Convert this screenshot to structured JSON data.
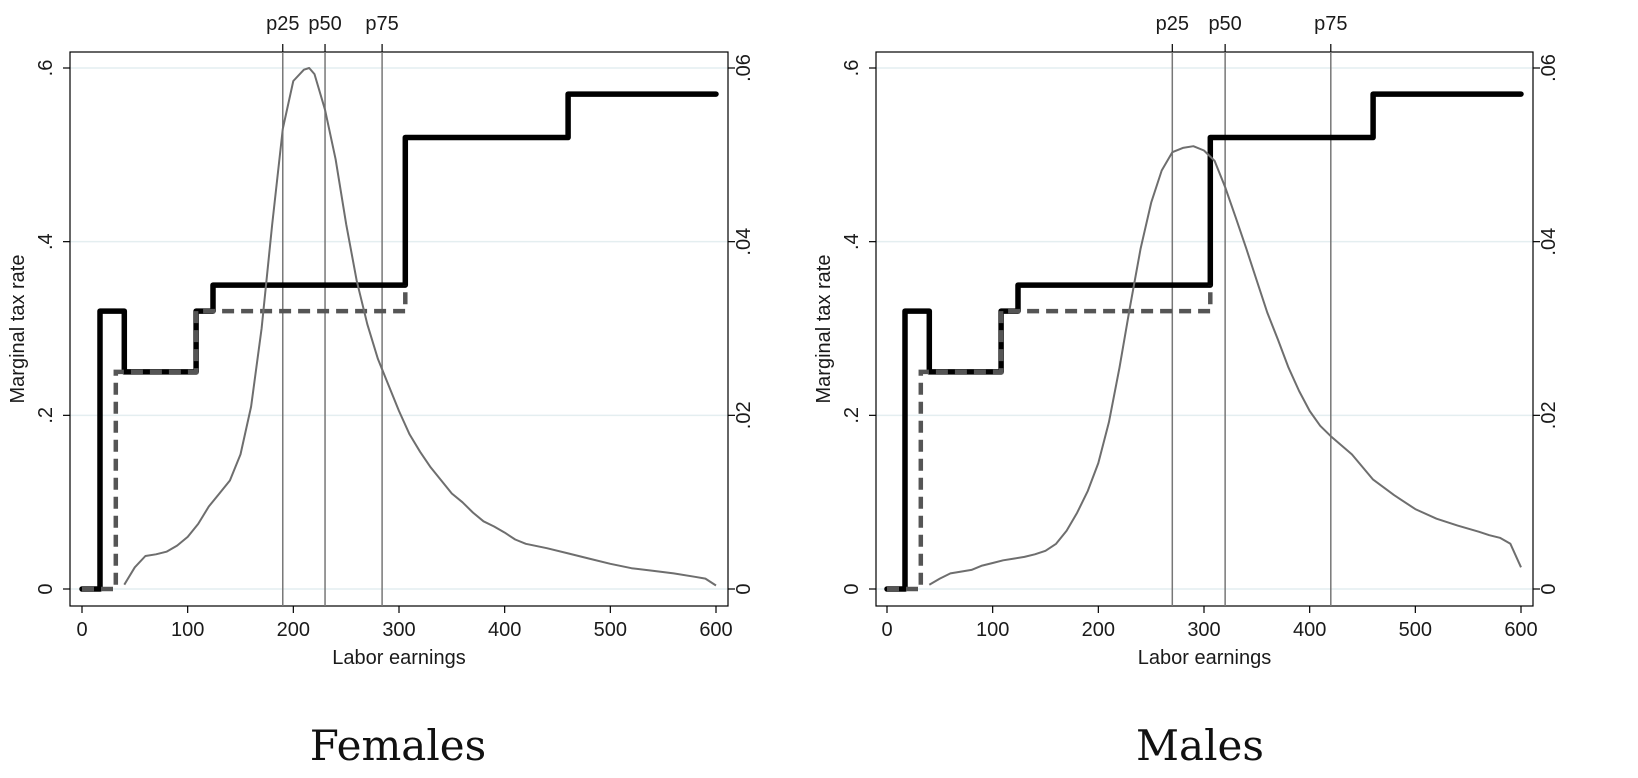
{
  "figure": {
    "captions": [
      "Females",
      "Males"
    ]
  },
  "chart_data": [
    {
      "type": "line",
      "title": "Females",
      "xlabel": "Labor earnings",
      "ylabel": "Marginal tax rate",
      "xlim": [
        0,
        600
      ],
      "ylim": [
        0,
        0.6
      ],
      "y2lim": [
        0,
        0.06
      ],
      "x_ticks": [
        0,
        100,
        200,
        300,
        400,
        500,
        600
      ],
      "x_tick_labels": [
        "0",
        "100",
        "200",
        "300",
        "400",
        "500",
        "600"
      ],
      "y_ticks": [
        0,
        0.2,
        0.4,
        0.6
      ],
      "y_tick_labels": [
        "0",
        ".2",
        ".4",
        ".6"
      ],
      "y2_ticks": [
        0,
        0.02,
        0.04,
        0.06
      ],
      "y2_tick_labels": [
        "0",
        ".02",
        ".04",
        ".06"
      ],
      "grid": "horizontal",
      "percentiles": [
        {
          "label": "p25",
          "x": 190
        },
        {
          "label": "p50",
          "x": 230
        },
        {
          "label": "p75",
          "x": 284
        }
      ],
      "series": [
        {
          "style": "solid-thick",
          "axis": "left",
          "step_points": [
            [
              0,
              0
            ],
            [
              17,
              0
            ],
            [
              17,
              0.32
            ],
            [
              40,
              0.32
            ],
            [
              40,
              0.25
            ],
            [
              108,
              0.25
            ],
            [
              108,
              0.32
            ],
            [
              124,
              0.32
            ],
            [
              124,
              0.35
            ],
            [
              306,
              0.35
            ],
            [
              306,
              0.52
            ],
            [
              460,
              0.52
            ],
            [
              460,
              0.57
            ],
            [
              600,
              0.57
            ]
          ]
        },
        {
          "style": "dashed",
          "axis": "left",
          "step_points": [
            [
              0,
              0
            ],
            [
              32,
              0
            ],
            [
              32,
              0.25
            ],
            [
              40,
              0.25
            ],
            [
              40,
              0.25
            ],
            [
              108,
              0.25
            ],
            [
              108,
              0.32
            ],
            [
              306,
              0.32
            ],
            [
              306,
              0.35
            ]
          ]
        },
        {
          "style": "density-thin",
          "axis": "right",
          "x": [
            40,
            50,
            60,
            70,
            80,
            90,
            100,
            110,
            120,
            130,
            140,
            150,
            160,
            170,
            180,
            190,
            200,
            210,
            215,
            220,
            230,
            240,
            250,
            260,
            270,
            280,
            290,
            300,
            310,
            320,
            330,
            340,
            350,
            360,
            370,
            380,
            390,
            400,
            410,
            420,
            440,
            460,
            480,
            500,
            520,
            540,
            560,
            580,
            590,
            600
          ],
          "y": [
            0.0005,
            0.0025,
            0.0038,
            0.004,
            0.0043,
            0.005,
            0.006,
            0.0075,
            0.0095,
            0.011,
            0.0125,
            0.0155,
            0.021,
            0.03,
            0.042,
            0.053,
            0.0585,
            0.0598,
            0.06,
            0.0593,
            0.0552,
            0.0495,
            0.042,
            0.0355,
            0.0305,
            0.0265,
            0.0235,
            0.0205,
            0.0178,
            0.0158,
            0.014,
            0.0125,
            0.011,
            0.01,
            0.0088,
            0.0078,
            0.0072,
            0.0065,
            0.0057,
            0.0052,
            0.0047,
            0.0041,
            0.0035,
            0.0029,
            0.0024,
            0.0021,
            0.0018,
            0.0014,
            0.0012,
            0.0004
          ]
        }
      ]
    },
    {
      "type": "line",
      "title": "Males",
      "xlabel": "Labor earnings",
      "ylabel": "Marginal tax rate",
      "xlim": [
        0,
        600
      ],
      "ylim": [
        0,
        0.6
      ],
      "y2lim": [
        0,
        0.06
      ],
      "x_ticks": [
        0,
        100,
        200,
        300,
        400,
        500,
        600
      ],
      "x_tick_labels": [
        "0",
        "100",
        "200",
        "300",
        "400",
        "500",
        "600"
      ],
      "y_ticks": [
        0,
        0.2,
        0.4,
        0.6
      ],
      "y_tick_labels": [
        "0",
        ".2",
        ".4",
        ".6"
      ],
      "y2_ticks": [
        0,
        0.02,
        0.04,
        0.06
      ],
      "y2_tick_labels": [
        "0",
        ".02",
        ".04",
        ".06"
      ],
      "grid": "horizontal",
      "percentiles": [
        {
          "label": "p25",
          "x": 270
        },
        {
          "label": "p50",
          "x": 320
        },
        {
          "label": "p75",
          "x": 420
        }
      ],
      "series": [
        {
          "style": "solid-thick",
          "axis": "left",
          "step_points": [
            [
              0,
              0
            ],
            [
              17,
              0
            ],
            [
              17,
              0.32
            ],
            [
              40,
              0.32
            ],
            [
              40,
              0.25
            ],
            [
              108,
              0.25
            ],
            [
              108,
              0.32
            ],
            [
              124,
              0.32
            ],
            [
              124,
              0.35
            ],
            [
              306,
              0.35
            ],
            [
              306,
              0.52
            ],
            [
              460,
              0.52
            ],
            [
              460,
              0.57
            ],
            [
              600,
              0.57
            ]
          ]
        },
        {
          "style": "dashed",
          "axis": "left",
          "step_points": [
            [
              0,
              0
            ],
            [
              32,
              0
            ],
            [
              32,
              0.25
            ],
            [
              40,
              0.25
            ],
            [
              40,
              0.25
            ],
            [
              108,
              0.25
            ],
            [
              108,
              0.32
            ],
            [
              306,
              0.32
            ],
            [
              306,
              0.35
            ]
          ]
        },
        {
          "style": "density-thin",
          "axis": "right",
          "x": [
            40,
            50,
            60,
            70,
            80,
            90,
            100,
            110,
            120,
            130,
            140,
            150,
            160,
            170,
            180,
            190,
            200,
            210,
            220,
            230,
            240,
            250,
            260,
            270,
            280,
            290,
            300,
            310,
            320,
            330,
            340,
            350,
            360,
            370,
            380,
            390,
            400,
            410,
            420,
            440,
            460,
            480,
            500,
            520,
            540,
            560,
            570,
            580,
            590,
            600
          ],
          "y": [
            0.0005,
            0.0012,
            0.0018,
            0.002,
            0.0022,
            0.0027,
            0.003,
            0.0033,
            0.0035,
            0.0037,
            0.004,
            0.0044,
            0.0052,
            0.0067,
            0.0088,
            0.0113,
            0.0145,
            0.0192,
            0.0255,
            0.0325,
            0.0392,
            0.0445,
            0.0482,
            0.0503,
            0.0508,
            0.051,
            0.0505,
            0.0493,
            0.0463,
            0.0428,
            0.0392,
            0.0355,
            0.0318,
            0.0287,
            0.0255,
            0.0228,
            0.0205,
            0.0188,
            0.0176,
            0.0155,
            0.0126,
            0.0108,
            0.0092,
            0.0081,
            0.0073,
            0.0066,
            0.0062,
            0.0059,
            0.0052,
            0.0025
          ]
        }
      ]
    }
  ]
}
